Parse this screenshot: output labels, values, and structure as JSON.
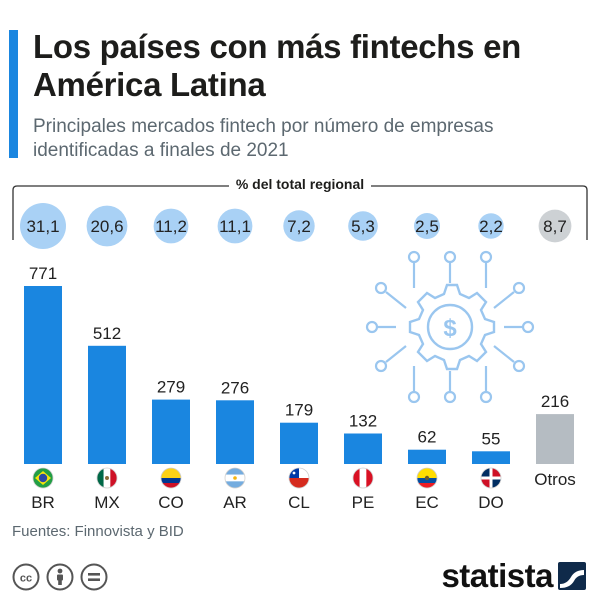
{
  "header": {
    "title": "Los países con más fintechs en América Latina",
    "subtitle": "Principales mercados fintech por número de empresas identificadas a finales de 2021",
    "accent_color": "#1a86e0"
  },
  "pct_header": "% del total regional",
  "chart_data": {
    "type": "bar",
    "categories": [
      "BR",
      "MX",
      "CO",
      "AR",
      "CL",
      "PE",
      "EC",
      "DO",
      "Otros"
    ],
    "values": [
      771,
      512,
      279,
      276,
      179,
      132,
      62,
      55,
      216
    ],
    "value_labels": [
      "771",
      "512",
      "279",
      "276",
      "179",
      "132",
      "62",
      "55",
      "216"
    ],
    "percent_share": [
      31.1,
      20.6,
      11.2,
      11.1,
      7.2,
      5.3,
      2.5,
      2.2,
      8.7
    ],
    "percent_labels": [
      "31,1",
      "20,6",
      "11,2",
      "11,1",
      "7,2",
      "5,3",
      "2,5",
      "2,2",
      "8,7"
    ],
    "flags": [
      "brazil-flag-icon",
      "mexico-flag-icon",
      "colombia-flag-icon",
      "argentina-flag-icon",
      "chile-flag-icon",
      "peru-flag-icon",
      "ecuador-flag-icon",
      "dominican-republic-flag-icon",
      null
    ],
    "colors": {
      "country_bar": "#1a86e0",
      "other_bar": "#b5bcc2",
      "circle": "#a9d1f5",
      "other_circle": "#cdd1d4"
    },
    "ylim": [
      0,
      771
    ]
  },
  "footer": {
    "source": "Fuentes: Finnovista y BID",
    "brand": "statista",
    "license_icons": [
      "cc-icon",
      "attribution-icon",
      "no-derivatives-icon"
    ]
  }
}
